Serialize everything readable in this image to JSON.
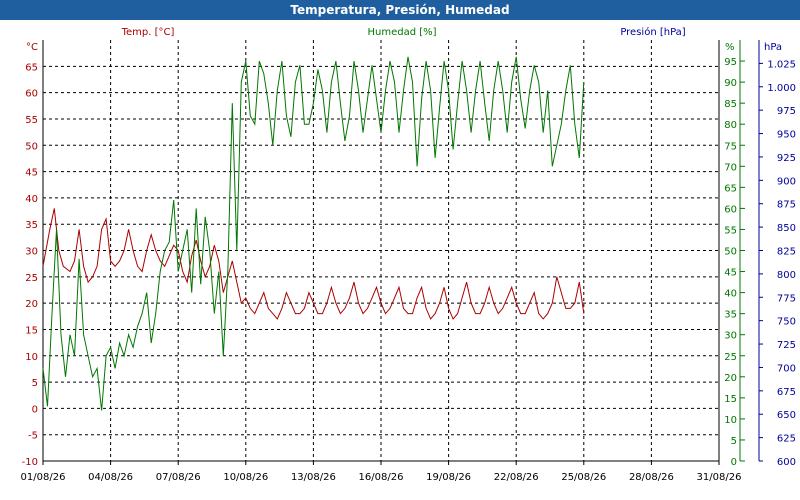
{
  "window": {
    "title": "Temperatura, Presión, Humedad"
  },
  "colors": {
    "titlebar": "#1f5fa0",
    "temp": "#aa0000",
    "hum": "#007700",
    "pres": "#000099",
    "grid": "#000000"
  },
  "chart_data": {
    "type": "line",
    "title": "Temperatura, Presión, Humedad",
    "x": {
      "range": [
        "01/08/26",
        "31/08/26"
      ],
      "ticks": [
        "01/08/26",
        "04/08/26",
        "07/08/26",
        "10/08/26",
        "13/08/26",
        "16/08/26",
        "19/08/26",
        "22/08/26",
        "25/08/26",
        "28/08/26",
        "31/08/26"
      ]
    },
    "axes": {
      "temp": {
        "unit": "°C",
        "ylim": [
          -10,
          70
        ],
        "ticks": [
          "-10",
          "-5",
          "0",
          "5",
          "10",
          "15",
          "20",
          "25",
          "30",
          "35",
          "40",
          "45",
          "50",
          "55",
          "60",
          "65"
        ]
      },
      "hum": {
        "unit": "%",
        "ylim": [
          0,
          100
        ],
        "ticks": [
          "0",
          "5",
          "10",
          "15",
          "20",
          "25",
          "30",
          "35",
          "40",
          "45",
          "50",
          "55",
          "60",
          "65",
          "70",
          "75",
          "80",
          "85",
          "90",
          "95"
        ]
      },
      "pres": {
        "unit": "hPa",
        "ylim": [
          600,
          1050
        ],
        "ticks": [
          "600",
          "625",
          "650",
          "675",
          "700",
          "725",
          "750",
          "775",
          "800",
          "825",
          "850",
          "875",
          "900",
          "925",
          "950",
          "975",
          "1.000",
          "1.025"
        ]
      }
    },
    "grid": true,
    "series": [
      {
        "name": "Temp. [°C]",
        "axis": "temp",
        "points": [
          [
            1.0,
            27
          ],
          [
            1.3,
            34
          ],
          [
            1.5,
            38
          ],
          [
            1.7,
            30
          ],
          [
            1.9,
            27
          ],
          [
            2.2,
            26
          ],
          [
            2.4,
            28
          ],
          [
            2.6,
            34
          ],
          [
            2.8,
            27
          ],
          [
            3.0,
            24
          ],
          [
            3.2,
            25
          ],
          [
            3.4,
            27
          ],
          [
            3.6,
            34
          ],
          [
            3.8,
            36
          ],
          [
            4.0,
            28
          ],
          [
            4.2,
            27
          ],
          [
            4.4,
            28
          ],
          [
            4.6,
            30
          ],
          [
            4.8,
            34
          ],
          [
            5.0,
            30
          ],
          [
            5.2,
            27
          ],
          [
            5.4,
            26
          ],
          [
            5.6,
            30
          ],
          [
            5.8,
            33
          ],
          [
            6.0,
            30
          ],
          [
            6.2,
            28
          ],
          [
            6.4,
            27
          ],
          [
            6.6,
            29
          ],
          [
            6.8,
            31
          ],
          [
            7.0,
            30
          ],
          [
            7.2,
            26
          ],
          [
            7.4,
            24
          ],
          [
            7.6,
            29
          ],
          [
            7.8,
            32
          ],
          [
            8.0,
            28
          ],
          [
            8.2,
            25
          ],
          [
            8.4,
            27
          ],
          [
            8.6,
            31
          ],
          [
            8.8,
            28
          ],
          [
            9.0,
            22
          ],
          [
            9.2,
            25
          ],
          [
            9.4,
            28
          ],
          [
            9.6,
            24
          ],
          [
            9.8,
            20
          ],
          [
            10.0,
            21
          ],
          [
            10.2,
            19
          ],
          [
            10.4,
            18
          ],
          [
            10.6,
            20
          ],
          [
            10.8,
            22
          ],
          [
            11.0,
            19
          ],
          [
            11.2,
            18
          ],
          [
            11.4,
            17
          ],
          [
            11.6,
            19
          ],
          [
            11.8,
            22
          ],
          [
            12.0,
            20
          ],
          [
            12.2,
            18
          ],
          [
            12.4,
            18
          ],
          [
            12.6,
            19
          ],
          [
            12.8,
            22
          ],
          [
            13.0,
            20
          ],
          [
            13.2,
            18
          ],
          [
            13.4,
            18
          ],
          [
            13.6,
            20
          ],
          [
            13.8,
            23
          ],
          [
            14.0,
            20
          ],
          [
            14.2,
            18
          ],
          [
            14.4,
            19
          ],
          [
            14.6,
            21
          ],
          [
            14.8,
            24
          ],
          [
            15.0,
            20
          ],
          [
            15.2,
            18
          ],
          [
            15.4,
            19
          ],
          [
            15.6,
            21
          ],
          [
            15.8,
            23
          ],
          [
            16.0,
            20
          ],
          [
            16.2,
            18
          ],
          [
            16.4,
            19
          ],
          [
            16.6,
            21
          ],
          [
            16.8,
            23
          ],
          [
            17.0,
            19
          ],
          [
            17.2,
            18
          ],
          [
            17.4,
            18
          ],
          [
            17.6,
            21
          ],
          [
            17.8,
            23
          ],
          [
            18.0,
            19
          ],
          [
            18.2,
            17
          ],
          [
            18.4,
            18
          ],
          [
            18.6,
            20
          ],
          [
            18.8,
            23
          ],
          [
            19.0,
            19
          ],
          [
            19.2,
            17
          ],
          [
            19.4,
            18
          ],
          [
            19.6,
            21
          ],
          [
            19.8,
            24
          ],
          [
            20.0,
            20
          ],
          [
            20.2,
            18
          ],
          [
            20.4,
            18
          ],
          [
            20.6,
            20
          ],
          [
            20.8,
            23
          ],
          [
            21.0,
            20
          ],
          [
            21.2,
            18
          ],
          [
            21.4,
            19
          ],
          [
            21.6,
            21
          ],
          [
            21.8,
            23
          ],
          [
            22.0,
            20
          ],
          [
            22.2,
            18
          ],
          [
            22.4,
            18
          ],
          [
            22.6,
            20
          ],
          [
            22.8,
            22
          ],
          [
            23.0,
            18
          ],
          [
            23.2,
            17
          ],
          [
            23.4,
            18
          ],
          [
            23.6,
            20
          ],
          [
            23.8,
            25
          ],
          [
            24.0,
            22
          ],
          [
            24.2,
            19
          ],
          [
            24.4,
            19
          ],
          [
            24.6,
            20
          ],
          [
            24.8,
            24
          ],
          [
            25.0,
            18
          ]
        ]
      },
      {
        "name": "Humedad [%]",
        "axis": "hum",
        "points": [
          [
            1.0,
            22
          ],
          [
            1.2,
            13
          ],
          [
            1.4,
            35
          ],
          [
            1.6,
            55
          ],
          [
            1.8,
            30
          ],
          [
            2.0,
            20
          ],
          [
            2.2,
            30
          ],
          [
            2.4,
            25
          ],
          [
            2.6,
            48
          ],
          [
            2.8,
            30
          ],
          [
            3.0,
            25
          ],
          [
            3.2,
            20
          ],
          [
            3.4,
            22
          ],
          [
            3.6,
            12
          ],
          [
            3.8,
            25
          ],
          [
            4.0,
            27
          ],
          [
            4.2,
            22
          ],
          [
            4.4,
            28
          ],
          [
            4.6,
            25
          ],
          [
            4.8,
            30
          ],
          [
            5.0,
            27
          ],
          [
            5.2,
            32
          ],
          [
            5.4,
            35
          ],
          [
            5.6,
            40
          ],
          [
            5.8,
            28
          ],
          [
            6.0,
            35
          ],
          [
            6.2,
            45
          ],
          [
            6.4,
            50
          ],
          [
            6.6,
            52
          ],
          [
            6.8,
            62
          ],
          [
            7.0,
            45
          ],
          [
            7.2,
            50
          ],
          [
            7.4,
            55
          ],
          [
            7.6,
            40
          ],
          [
            7.8,
            60
          ],
          [
            8.0,
            42
          ],
          [
            8.2,
            58
          ],
          [
            8.4,
            50
          ],
          [
            8.6,
            35
          ],
          [
            8.8,
            45
          ],
          [
            9.0,
            25
          ],
          [
            9.2,
            45
          ],
          [
            9.4,
            85
          ],
          [
            9.6,
            50
          ],
          [
            9.8,
            90
          ],
          [
            10.0,
            95
          ],
          [
            10.2,
            82
          ],
          [
            10.4,
            80
          ],
          [
            10.6,
            95
          ],
          [
            10.8,
            92
          ],
          [
            11.0,
            85
          ],
          [
            11.2,
            75
          ],
          [
            11.4,
            88
          ],
          [
            11.6,
            95
          ],
          [
            11.8,
            82
          ],
          [
            12.0,
            77
          ],
          [
            12.2,
            90
          ],
          [
            12.4,
            94
          ],
          [
            12.6,
            80
          ],
          [
            12.8,
            80
          ],
          [
            13.0,
            85
          ],
          [
            13.2,
            93
          ],
          [
            13.4,
            88
          ],
          [
            13.6,
            78
          ],
          [
            13.8,
            90
          ],
          [
            14.0,
            95
          ],
          [
            14.2,
            85
          ],
          [
            14.4,
            76
          ],
          [
            14.6,
            82
          ],
          [
            14.8,
            95
          ],
          [
            15.0,
            88
          ],
          [
            15.2,
            78
          ],
          [
            15.4,
            86
          ],
          [
            15.6,
            94
          ],
          [
            15.8,
            86
          ],
          [
            16.0,
            78
          ],
          [
            16.2,
            88
          ],
          [
            16.4,
            95
          ],
          [
            16.6,
            90
          ],
          [
            16.8,
            78
          ],
          [
            17.0,
            88
          ],
          [
            17.2,
            96
          ],
          [
            17.4,
            90
          ],
          [
            17.6,
            70
          ],
          [
            17.8,
            86
          ],
          [
            18.0,
            95
          ],
          [
            18.2,
            88
          ],
          [
            18.4,
            72
          ],
          [
            18.6,
            84
          ],
          [
            18.8,
            95
          ],
          [
            19.0,
            88
          ],
          [
            19.2,
            74
          ],
          [
            19.4,
            85
          ],
          [
            19.6,
            95
          ],
          [
            19.8,
            88
          ],
          [
            20.0,
            78
          ],
          [
            20.2,
            88
          ],
          [
            20.4,
            95
          ],
          [
            20.6,
            85
          ],
          [
            20.8,
            76
          ],
          [
            21.0,
            88
          ],
          [
            21.2,
            95
          ],
          [
            21.4,
            88
          ],
          [
            21.6,
            78
          ],
          [
            21.8,
            90
          ],
          [
            22.0,
            96
          ],
          [
            22.2,
            86
          ],
          [
            22.4,
            79
          ],
          [
            22.6,
            88
          ],
          [
            22.8,
            94
          ],
          [
            23.0,
            90
          ],
          [
            23.2,
            78
          ],
          [
            23.4,
            88
          ],
          [
            23.6,
            70
          ],
          [
            23.8,
            75
          ],
          [
            24.0,
            80
          ],
          [
            24.2,
            88
          ],
          [
            24.4,
            94
          ],
          [
            24.6,
            80
          ],
          [
            24.8,
            72
          ],
          [
            25.0,
            90
          ]
        ]
      },
      {
        "name": "Presión [hPa]",
        "axis": "pres",
        "points": []
      }
    ]
  }
}
